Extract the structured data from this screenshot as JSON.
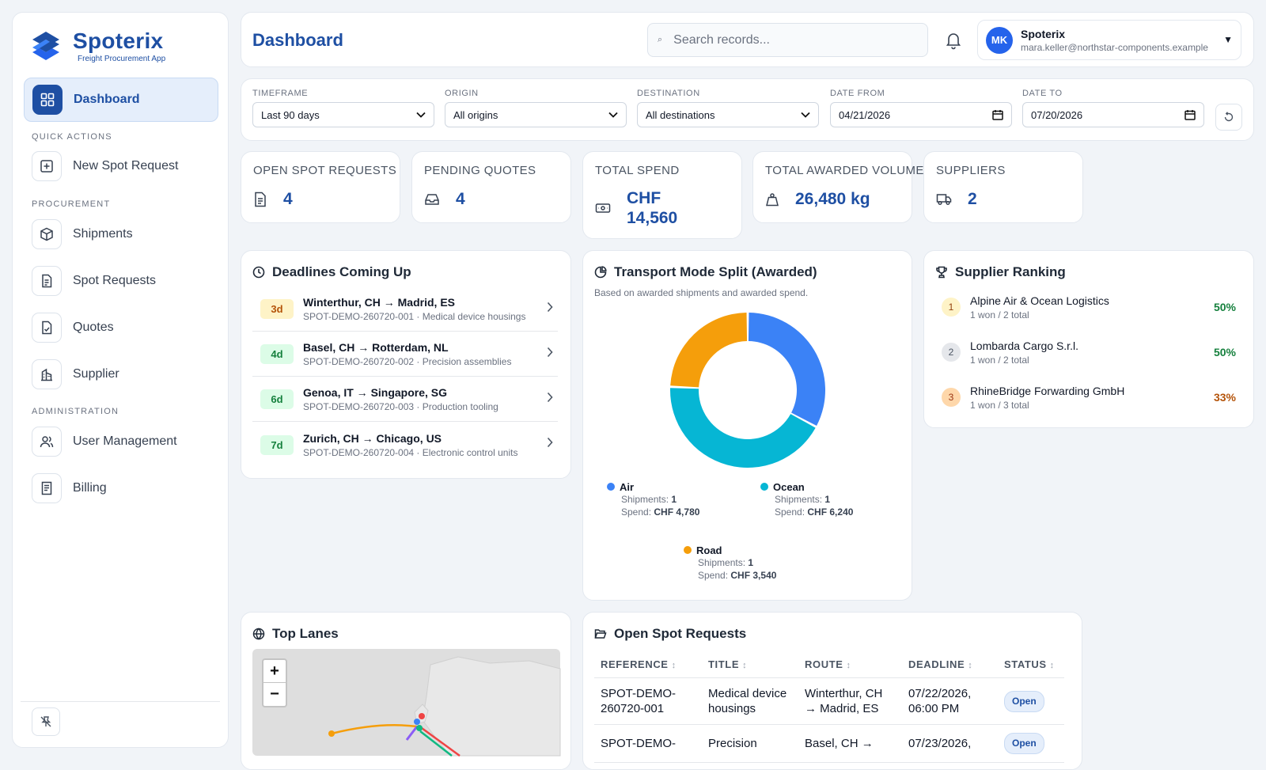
{
  "app": {
    "name": "Spoterix",
    "subtitle": "Freight Procurement App"
  },
  "sidebar": {
    "dashboard": "Dashboard",
    "quick_actions_label": "QUICK ACTIONS",
    "new_spot_request": "New Spot Request",
    "procurement_label": "PROCUREMENT",
    "shipments": "Shipments",
    "spot_requests": "Spot Requests",
    "quotes": "Quotes",
    "supplier": "Supplier",
    "administration_label": "ADMINISTRATION",
    "user_management": "User Management",
    "billing": "Billing"
  },
  "header": {
    "title": "Dashboard",
    "search_placeholder": "Search records...",
    "user_initials": "MK",
    "user_name": "Spoterix",
    "user_email": "mara.keller@northstar-components.example"
  },
  "filters": {
    "timeframe_label": "TIMEFRAME",
    "timeframe_value": "Last 90 days",
    "origin_label": "ORIGIN",
    "origin_value": "All origins",
    "destination_label": "DESTINATION",
    "destination_value": "All destinations",
    "date_from_label": "DATE FROM",
    "date_from_value": "04/21/2026",
    "date_to_label": "DATE TO",
    "date_to_value": "07/20/2026"
  },
  "kpis": [
    {
      "label": "OPEN SPOT REQUESTS",
      "value": "4",
      "icon": "document-icon"
    },
    {
      "label": "PENDING QUOTES",
      "value": "4",
      "icon": "inbox-icon"
    },
    {
      "label": "TOTAL SPEND",
      "value_line1": "CHF",
      "value_line2": "14,560",
      "icon": "money-icon"
    },
    {
      "label": "TOTAL AWARDED VOLUME",
      "value": "26,480 kg",
      "icon": "weight-icon"
    },
    {
      "label": "SUPPLIERS",
      "value": "2",
      "icon": "truck-icon"
    }
  ],
  "deadlines": {
    "title": "Deadlines Coming Up",
    "items": [
      {
        "badge": "3d",
        "route": "Winterthur, CH → Madrid, ES",
        "sub": "SPOT-DEMO-260720-001 · Medical device housings"
      },
      {
        "badge": "4d",
        "route": "Basel, CH → Rotterdam, NL",
        "sub": "SPOT-DEMO-260720-002 · Precision assemblies"
      },
      {
        "badge": "6d",
        "route": "Genoa, IT → Singapore, SG",
        "sub": "SPOT-DEMO-260720-003 · Production tooling"
      },
      {
        "badge": "7d",
        "route": "Zurich, CH → Chicago, US",
        "sub": "SPOT-DEMO-260720-004 · Electronic control units"
      }
    ]
  },
  "transport": {
    "title": "Transport Mode Split (Awarded)",
    "subtitle": "Based on awarded shipments and awarded spend.",
    "shipments_label": "Shipments:",
    "spend_label": "Spend:",
    "modes": [
      {
        "name": "Air",
        "shipments": "1",
        "spend": "CHF 4,780",
        "color": "#3b82f6"
      },
      {
        "name": "Ocean",
        "shipments": "1",
        "spend": "CHF 6,240",
        "color": "#06b6d4"
      },
      {
        "name": "Road",
        "shipments": "1",
        "spend": "CHF 3,540",
        "color": "#f59e0b"
      }
    ]
  },
  "chart_data": {
    "type": "pie",
    "categories": [
      "Air",
      "Ocean",
      "Road"
    ],
    "values": [
      4780,
      6240,
      3540
    ],
    "title": "Transport Mode Split (Awarded)"
  },
  "ranking": {
    "title": "Supplier Ranking",
    "items": [
      {
        "rank": "1",
        "name": "Alpine Air & Ocean Logistics",
        "sub": "1 won / 2 total",
        "pct": "50%"
      },
      {
        "rank": "2",
        "name": "Lombarda Cargo S.r.l.",
        "sub": "1 won / 2 total",
        "pct": "50%"
      },
      {
        "rank": "3",
        "name": "RhineBridge Forwarding GmbH",
        "sub": "1 won / 3 total",
        "pct": "33%"
      }
    ]
  },
  "lanes": {
    "title": "Top Lanes",
    "zoom_in": "+",
    "zoom_out": "−"
  },
  "open_requests": {
    "title": "Open Spot Requests",
    "columns": [
      "REFERENCE",
      "TITLE",
      "ROUTE",
      "DEADLINE",
      "STATUS"
    ],
    "rows": [
      {
        "ref": "SPOT-DEMO-260720-001",
        "title": "Medical device housings",
        "route": "Winterthur, CH → Madrid, ES",
        "deadline": "07/22/2026, 06:00 PM",
        "status": "Open"
      },
      {
        "ref": "SPOT-DEMO-",
        "title": "Precision",
        "route": "Basel, CH →",
        "deadline": "07/23/2026,",
        "status": "Open"
      }
    ]
  }
}
